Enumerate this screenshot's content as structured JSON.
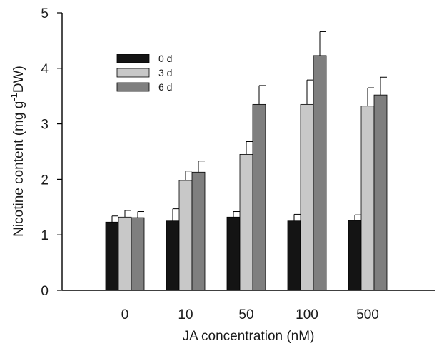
{
  "chart_data": {
    "type": "bar",
    "title": "",
    "xlabel": "JA concentration (nM)",
    "ylabel": {
      "main": "Nicotine content (mg g",
      "sup": "-1",
      "tail": "DW)"
    },
    "categories": [
      "0",
      "10",
      "50",
      "100",
      "500"
    ],
    "ylim": [
      0,
      5
    ],
    "yticks": [
      "0",
      "1",
      "2",
      "3",
      "4",
      "5"
    ],
    "series": [
      {
        "name": "0 d",
        "color": "#141414",
        "values": [
          1.23,
          1.25,
          1.32,
          1.25,
          1.26
        ],
        "errors": [
          0.11,
          0.22,
          0.1,
          0.12,
          0.1
        ]
      },
      {
        "name": "3 d",
        "color": "#c8c8c8",
        "values": [
          1.32,
          1.98,
          2.45,
          3.35,
          3.32
        ],
        "errors": [
          0.12,
          0.17,
          0.23,
          0.44,
          0.33
        ]
      },
      {
        "name": "6 d",
        "color": "#7f7f7f",
        "values": [
          1.31,
          2.13,
          3.35,
          4.23,
          3.52
        ],
        "errors": [
          0.11,
          0.2,
          0.34,
          0.43,
          0.32
        ]
      }
    ],
    "legend": "top-left",
    "grid": false
  }
}
